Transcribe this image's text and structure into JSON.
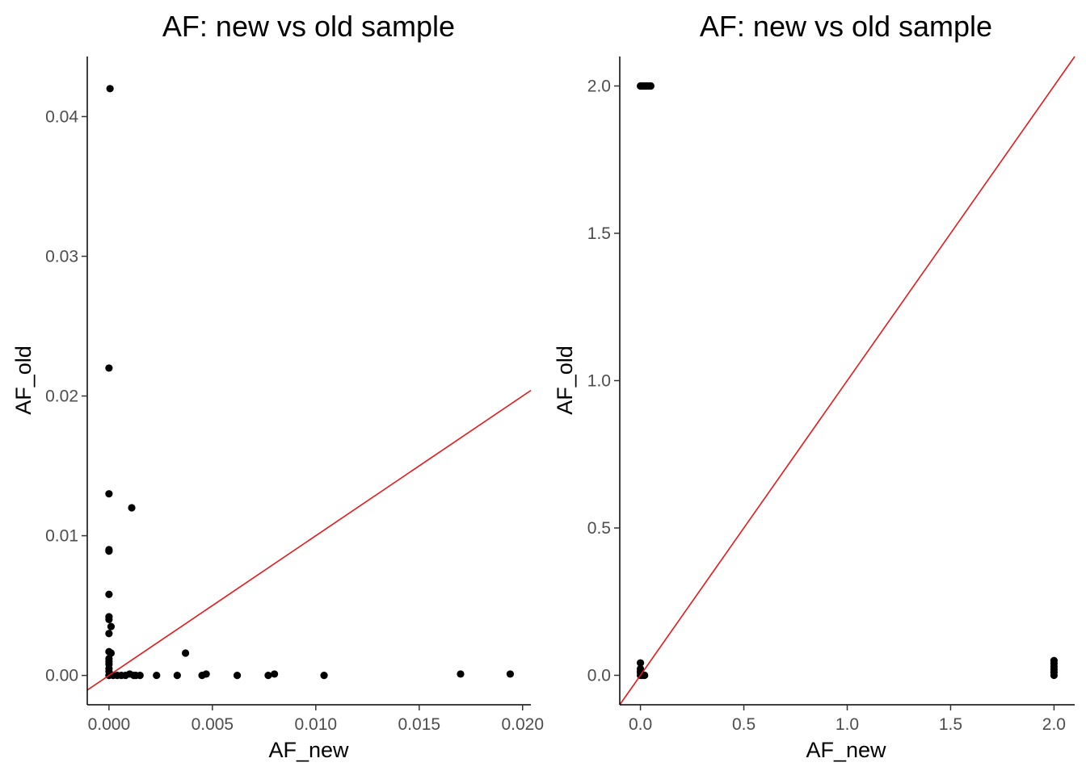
{
  "chart_data": [
    {
      "type": "scatter",
      "title": "AF: new vs old sample",
      "xlabel": "AF_new",
      "ylabel": "AF_old",
      "xlim": [
        -0.00105,
        0.0204
      ],
      "ylim": [
        -0.0021,
        0.0443
      ],
      "xticks": [
        0,
        0.005,
        0.01,
        0.015,
        0.02
      ],
      "xtick_labels": [
        "0.000",
        "0.005",
        "0.010",
        "0.015",
        "0.020"
      ],
      "yticks": [
        0,
        0.01,
        0.02,
        0.03,
        0.04
      ],
      "ytick_labels": [
        "0.00",
        "0.01",
        "0.02",
        "0.03",
        "0.04"
      ],
      "grid": false,
      "reference_line": {
        "slope": 1,
        "intercept": 0,
        "color": "#e31a1c"
      },
      "point_color": "#000000",
      "points": [
        [
          5e-05,
          0.042
        ],
        [
          0.0,
          0.022
        ],
        [
          0.0,
          0.013
        ],
        [
          0.0011,
          0.012
        ],
        [
          0.0,
          0.009
        ],
        [
          0.0,
          0.0089
        ],
        [
          0.0,
          0.0058
        ],
        [
          0.0,
          0.0042
        ],
        [
          0.0,
          0.004
        ],
        [
          0.0001,
          0.0035
        ],
        [
          0.0,
          0.003
        ],
        [
          0.0,
          0.0017
        ],
        [
          0.0001,
          0.0016
        ],
        [
          0.0,
          0.0012
        ],
        [
          0.0,
          0.001
        ],
        [
          0.0,
          0.0008
        ],
        [
          0.0,
          0.0005
        ],
        [
          0.0,
          0.0003
        ],
        [
          0.0,
          0.0
        ],
        [
          0.0002,
          0.0
        ],
        [
          0.0004,
          0.0
        ],
        [
          0.0006,
          0.0
        ],
        [
          0.0008,
          0.0
        ],
        [
          0.001,
          0.0001
        ],
        [
          0.0012,
          0.0
        ],
        [
          0.0013,
          0.0
        ],
        [
          0.0015,
          0.0
        ],
        [
          0.0023,
          0.0
        ],
        [
          0.0033,
          0.0
        ],
        [
          0.0037,
          0.0016
        ],
        [
          0.0045,
          0.0
        ],
        [
          0.0047,
          0.0001
        ],
        [
          0.0062,
          0.0
        ],
        [
          0.0077,
          0.0
        ],
        [
          0.008,
          0.0001
        ],
        [
          0.0104,
          0.0
        ],
        [
          0.017,
          0.0001
        ],
        [
          0.0194,
          0.0001
        ]
      ]
    },
    {
      "type": "scatter",
      "title": "AF: new vs old sample",
      "xlabel": "AF_new",
      "ylabel": "AF_old",
      "xlim": [
        -0.1,
        2.1
      ],
      "ylim": [
        -0.1,
        2.1
      ],
      "xticks": [
        0,
        0.5,
        1,
        1.5,
        2
      ],
      "xtick_labels": [
        "0.0",
        "0.5",
        "1.0",
        "1.5",
        "2.0"
      ],
      "yticks": [
        0,
        0.5,
        1,
        1.5,
        2
      ],
      "ytick_labels": [
        "0.0",
        "0.5",
        "1.0",
        "1.5",
        "2.0"
      ],
      "grid": false,
      "reference_line": {
        "slope": 1,
        "intercept": 0,
        "color": "#e31a1c"
      },
      "point_color": "#000000",
      "points": [
        [
          0.0,
          2.0
        ],
        [
          0.01,
          2.0
        ],
        [
          0.02,
          2.0
        ],
        [
          0.03,
          2.0
        ],
        [
          0.04,
          2.0
        ],
        [
          0.05,
          2.0
        ],
        [
          0.0,
          0.042
        ],
        [
          0.0,
          0.022
        ],
        [
          0.0,
          0.013
        ],
        [
          0.0,
          0.009
        ],
        [
          0.0,
          0.0
        ],
        [
          0.005,
          0.0
        ],
        [
          0.01,
          0.0
        ],
        [
          0.015,
          0.0
        ],
        [
          0.02,
          0.0
        ],
        [
          2.0,
          0.0
        ],
        [
          2.0,
          0.01
        ],
        [
          2.0,
          0.02
        ],
        [
          2.0,
          0.03
        ],
        [
          2.0,
          0.04
        ],
        [
          2.0,
          0.05
        ]
      ]
    }
  ]
}
